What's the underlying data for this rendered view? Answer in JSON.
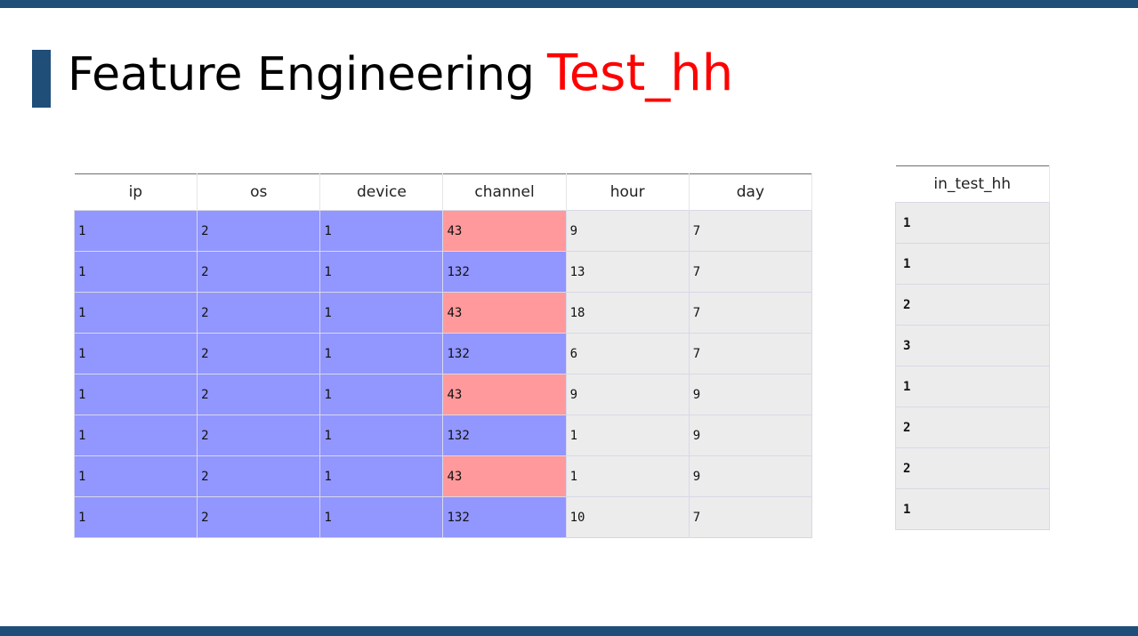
{
  "slide": {
    "title": "Feature Engineering",
    "title_accent": "Test_hh",
    "colors": {
      "bar": "#1f4e79",
      "accent": "#ff0000",
      "cell_blue": "#9296ff",
      "cell_red": "#ff999b",
      "cell_grey": "#ececec"
    }
  },
  "main_table": {
    "columns": [
      "ip",
      "os",
      "device",
      "channel",
      "hour",
      "day"
    ],
    "rows": [
      [
        "1",
        "2",
        "1",
        "43",
        "9",
        "7"
      ],
      [
        "1",
        "2",
        "1",
        "132",
        "13",
        "7"
      ],
      [
        "1",
        "2",
        "1",
        "43",
        "18",
        "7"
      ],
      [
        "1",
        "2",
        "1",
        "132",
        "6",
        "7"
      ],
      [
        "1",
        "2",
        "1",
        "43",
        "9",
        "9"
      ],
      [
        "1",
        "2",
        "1",
        "132",
        "1",
        "9"
      ],
      [
        "1",
        "2",
        "1",
        "43",
        "1",
        "9"
      ],
      [
        "1",
        "2",
        "1",
        "132",
        "10",
        "7"
      ]
    ]
  },
  "side_table": {
    "column": "in_test_hh",
    "rows": [
      "1",
      "1",
      "2",
      "3",
      "1",
      "2",
      "2",
      "1"
    ]
  }
}
